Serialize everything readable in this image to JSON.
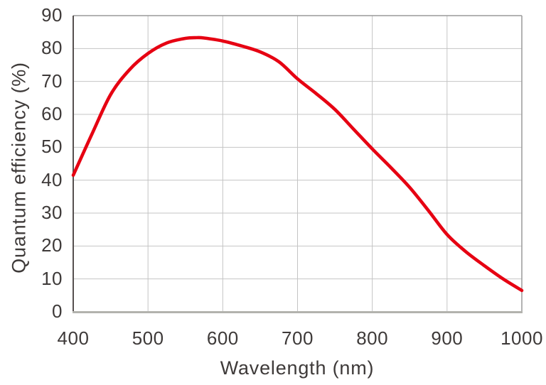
{
  "chart_data": {
    "type": "line",
    "title": "",
    "xlabel": "Wavelength (nm)",
    "ylabel": "Quantum efficiency (%)",
    "xlim": [
      400,
      1000
    ],
    "ylim": [
      0,
      90
    ],
    "x_ticks": [
      400,
      500,
      600,
      700,
      800,
      900,
      1000
    ],
    "y_ticks": [
      0,
      10,
      20,
      30,
      40,
      50,
      60,
      70,
      80,
      90
    ],
    "grid": true,
    "legend": false,
    "series": [
      {
        "name": "Quantum efficiency",
        "color": "#e60012",
        "x": [
          400,
          425,
          450,
          475,
          500,
          525,
          550,
          565,
          575,
          600,
          625,
          650,
          675,
          700,
          725,
          750,
          775,
          800,
          825,
          850,
          875,
          900,
          925,
          950,
          975,
          1000
        ],
        "y": [
          41.5,
          54,
          66,
          73.5,
          78.5,
          81.7,
          83.1,
          83.3,
          83.2,
          82.3,
          80.8,
          79,
          76,
          70.8,
          66.3,
          61.5,
          55.5,
          49.5,
          43.8,
          37.8,
          30.8,
          23.5,
          18.3,
          14,
          10,
          6.5
        ]
      }
    ],
    "annotations": {
      "peak_value_percent": 83.3,
      "peak_wavelength_nm": 565
    }
  },
  "style": {
    "curve_color": "#e60012",
    "text_color": "#3e3a39",
    "grid_color": "#c4c4c4",
    "border_top_right_color": "#9a9a9a",
    "axis_left_color": "#56504f",
    "axis_bottom_color": "#b3b3ae",
    "background": "#ffffff"
  }
}
